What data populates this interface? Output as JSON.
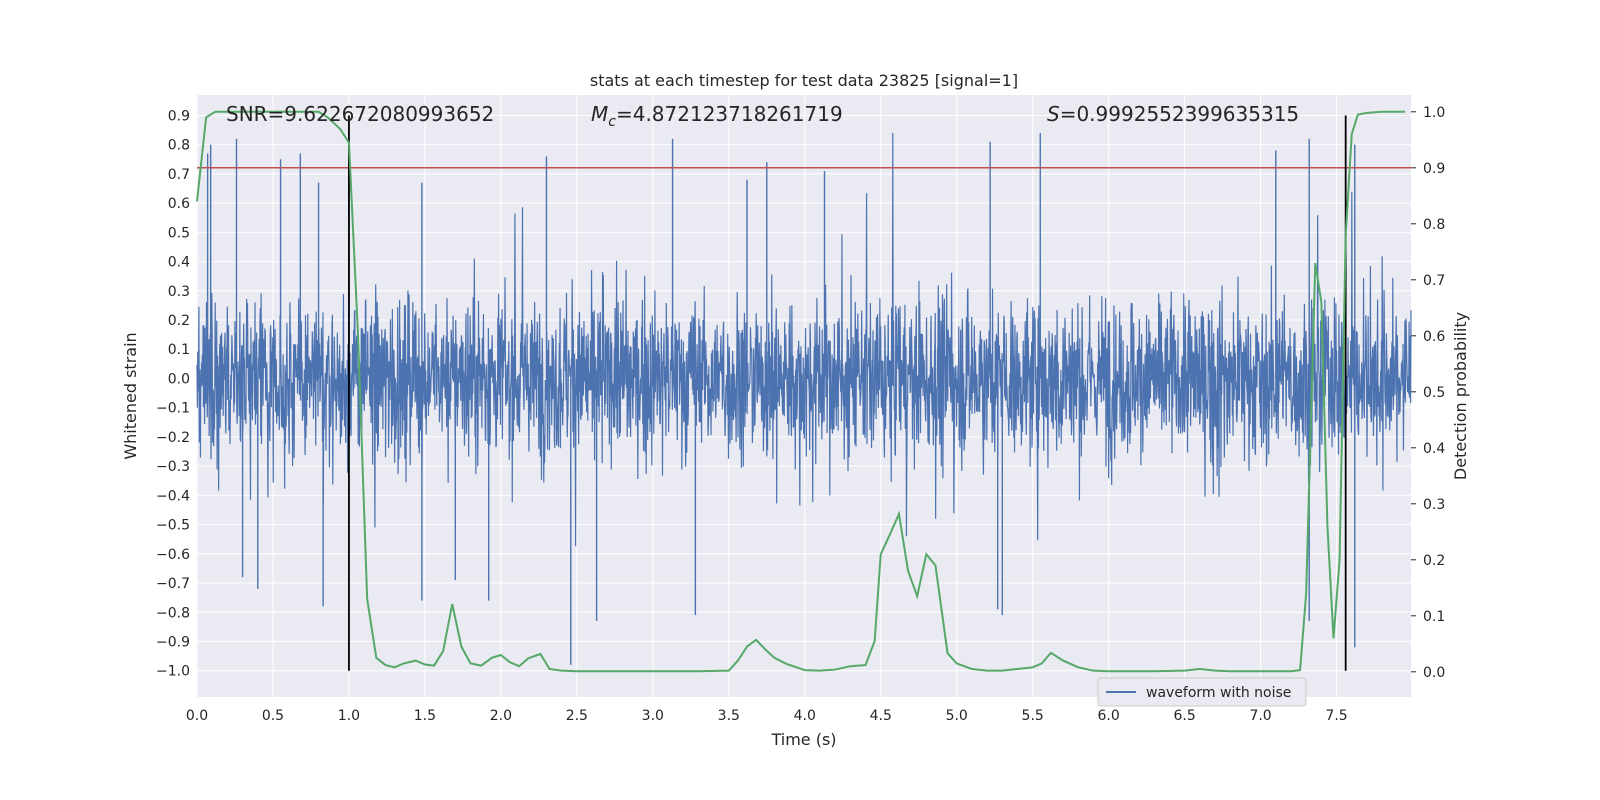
{
  "chart_data": {
    "type": "line",
    "title": "stats at each timestep for test data 23825 [signal=1]",
    "xlabel": "Time (s)",
    "ylabel_left": "Whitened strain",
    "ylabel_right": "Detection probability",
    "xlim": [
      0,
      7.99
    ],
    "ylim_left": [
      -1.09,
      0.97
    ],
    "ylim_right": [
      -0.045,
      1.03
    ],
    "grid": true,
    "x_ticks": [
      "0.0",
      "0.5",
      "1.0",
      "1.5",
      "2.0",
      "2.5",
      "3.0",
      "3.5",
      "4.0",
      "4.5",
      "5.0",
      "5.5",
      "6.0",
      "6.5",
      "7.0",
      "7.5"
    ],
    "y_ticks_left": [
      "0.9",
      "0.8",
      "0.7",
      "0.6",
      "0.5",
      "0.4",
      "0.3",
      "0.2",
      "0.1",
      "0.0",
      "−0.1",
      "−0.2",
      "−0.3",
      "−0.4",
      "−0.5",
      "−0.6",
      "−0.7",
      "−0.8",
      "−0.9",
      "−1.0"
    ],
    "y_ticks_right": [
      "1.0",
      "0.9",
      "0.8",
      "0.7",
      "0.6",
      "0.5",
      "0.4",
      "0.3",
      "0.2",
      "0.1",
      "0.0"
    ],
    "annotations": {
      "snr": "SNR=9.622672080993652",
      "mc": "M_c=4.872123718261719",
      "s": "S=0.9992552399635315"
    },
    "threshold_line": {
      "y": 0.9,
      "axis": "right",
      "color": "#c44e52"
    },
    "vlines": [
      {
        "x": 1.0,
        "ymin": -1.0,
        "ymax": 0.9
      },
      {
        "x": 7.56,
        "ymin": -1.0,
        "ymax": 0.9
      }
    ],
    "series": [
      {
        "name": "waveform with noise",
        "axis": "left",
        "color": "#4c72b0",
        "kind": "noise",
        "envelope_min": -0.97,
        "envelope_max": 0.84,
        "typical_amplitude": 0.42
      },
      {
        "axis": "right",
        "color": "#55a868",
        "x": [
          0.0,
          0.06,
          0.12,
          0.2,
          0.3,
          0.4,
          0.5,
          0.6,
          0.7,
          0.8,
          0.86,
          0.94,
          1.0,
          1.06,
          1.12,
          1.18,
          1.24,
          1.3,
          1.36,
          1.44,
          1.5,
          1.56,
          1.62,
          1.68,
          1.74,
          1.8,
          1.87,
          1.94,
          2.0,
          2.06,
          2.12,
          2.18,
          2.26,
          2.32,
          2.4,
          2.5,
          2.7,
          3.0,
          3.3,
          3.5,
          3.56,
          3.62,
          3.68,
          3.74,
          3.8,
          3.88,
          4.0,
          4.1,
          4.2,
          4.3,
          4.4,
          4.46,
          4.5,
          4.56,
          4.62,
          4.68,
          4.74,
          4.8,
          4.86,
          4.94,
          5.0,
          5.1,
          5.2,
          5.3,
          5.5,
          5.56,
          5.62,
          5.7,
          5.8,
          5.9,
          6.0,
          6.3,
          6.5,
          6.6,
          6.7,
          6.8,
          7.0,
          7.2,
          7.26,
          7.3,
          7.36,
          7.4,
          7.44,
          7.48,
          7.52,
          7.56,
          7.6,
          7.64,
          7.7,
          7.8,
          7.95
        ],
        "values": [
          0.84,
          0.99,
          1.0,
          1.0,
          1.0,
          1.0,
          1.0,
          1.0,
          1.0,
          1.0,
          0.99,
          0.97,
          0.945,
          0.6,
          0.13,
          0.025,
          0.012,
          0.008,
          0.015,
          0.02,
          0.013,
          0.011,
          0.037,
          0.121,
          0.045,
          0.015,
          0.011,
          0.025,
          0.03,
          0.017,
          0.01,
          0.024,
          0.032,
          0.005,
          0.002,
          0.001,
          0.001,
          0.001,
          0.001,
          0.002,
          0.02,
          0.045,
          0.057,
          0.04,
          0.025,
          0.014,
          0.003,
          0.002,
          0.004,
          0.01,
          0.012,
          0.055,
          0.21,
          0.245,
          0.282,
          0.18,
          0.135,
          0.21,
          0.19,
          0.033,
          0.015,
          0.005,
          0.002,
          0.002,
          0.008,
          0.015,
          0.034,
          0.02,
          0.008,
          0.002,
          0.001,
          0.001,
          0.002,
          0.005,
          0.002,
          0.001,
          0.001,
          0.001,
          0.003,
          0.14,
          0.73,
          0.66,
          0.26,
          0.06,
          0.2,
          0.78,
          0.96,
          0.995,
          0.998,
          1.0,
          1.0
        ]
      }
    ],
    "legend": {
      "placement": "lower-right",
      "entries": [
        "waveform with noise"
      ]
    }
  }
}
